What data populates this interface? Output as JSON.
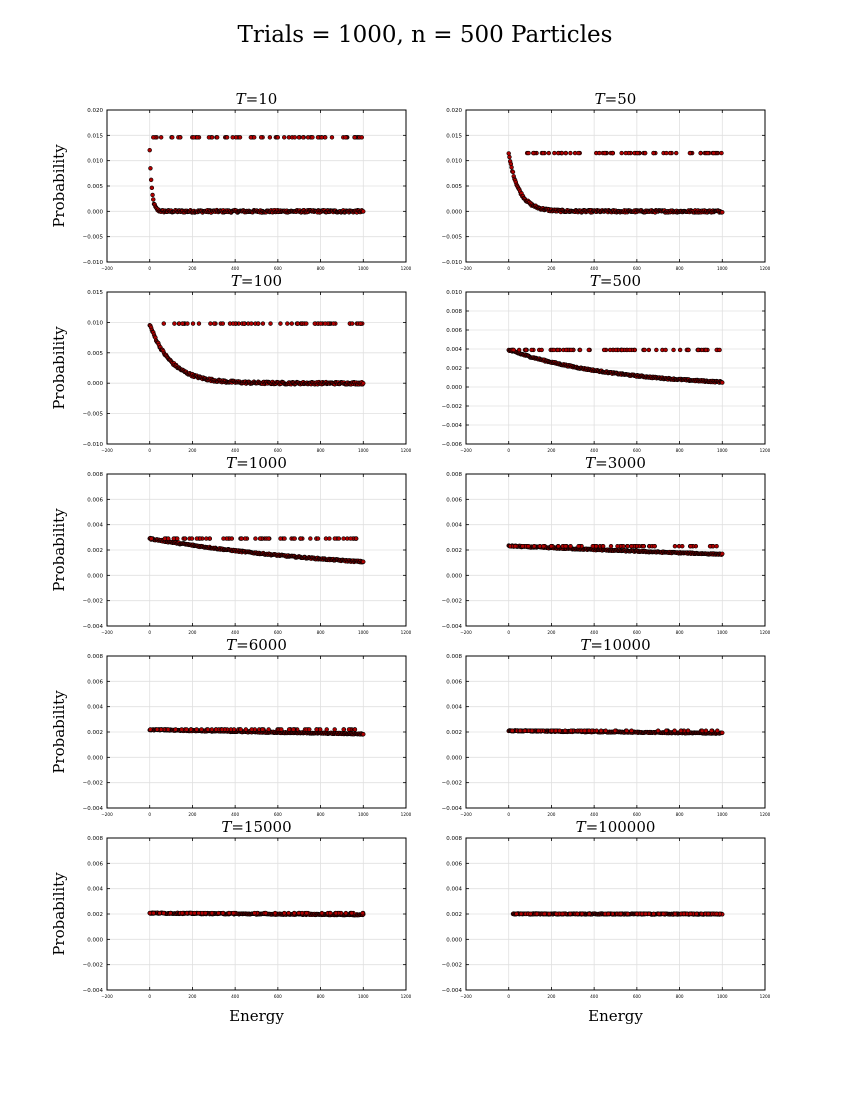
{
  "figure": {
    "title": "Trials$=1000,n=500$ Particles",
    "title_display": "Trials = 1000, n = 500 Particles",
    "ylabel": "Probability",
    "xlabel": "Energy",
    "marker_face_color": "#b00000",
    "marker_edge_color": "#000000",
    "grid_color": "#e0e0e0"
  },
  "chart_data": [
    {
      "type": "scatter",
      "title": "T=10",
      "xlim": [
        -200,
        1200
      ],
      "ylim": [
        -0.01,
        0.02
      ],
      "xticks": [
        "-200",
        "0",
        "200",
        "400",
        "600",
        "800",
        "1000",
        "1200"
      ],
      "yticks": [
        "-0.010",
        "-0.005",
        "0.000",
        "0.005",
        "0.010",
        "0.015",
        "0.020"
      ],
      "grid": true,
      "model": {
        "T": 10,
        "n": 500,
        "upper_level": 0.0146,
        "upper_from": 0,
        "curve_from": 0,
        "start_y": 0.012
      }
    },
    {
      "type": "scatter",
      "title": "T=50",
      "xlim": [
        -200,
        1200
      ],
      "ylim": [
        -0.01,
        0.02
      ],
      "xticks": [
        "-200",
        "0",
        "200",
        "400",
        "600",
        "800",
        "1000",
        "1200"
      ],
      "yticks": [
        "-0.010",
        "-0.005",
        "0.000",
        "0.005",
        "0.010",
        "0.015",
        "0.020"
      ],
      "grid": true,
      "model": {
        "T": 50,
        "n": 500,
        "upper_level": 0.0115,
        "upper_from": 50,
        "curve_from": 0,
        "start_y": 0.0113
      }
    },
    {
      "type": "scatter",
      "title": "T=100",
      "xlim": [
        -200,
        1200
      ],
      "ylim": [
        -0.01,
        0.015
      ],
      "xticks": [
        "-200",
        "0",
        "200",
        "400",
        "600",
        "800",
        "1000",
        "1200"
      ],
      "yticks": [
        "-0.010",
        "-0.005",
        "0.000",
        "0.005",
        "0.010",
        "0.015"
      ],
      "grid": true,
      "model": {
        "T": 100,
        "n": 500,
        "upper_level": 0.0098,
        "upper_from": 50,
        "curve_from": 0,
        "start_y": 0.0097
      }
    },
    {
      "type": "scatter",
      "title": "T=500",
      "xlim": [
        -200,
        1200
      ],
      "ylim": [
        -0.006,
        0.01
      ],
      "xticks": [
        "-200",
        "0",
        "200",
        "400",
        "600",
        "800",
        "1000",
        "1200"
      ],
      "yticks": [
        "-0.006",
        "-0.004",
        "-0.002",
        "0.000",
        "0.002",
        "0.004",
        "0.006",
        "0.008",
        "0.010"
      ],
      "grid": true,
      "model": {
        "T": 500,
        "n": 500,
        "upper_level": 0.0039,
        "upper_from": 0,
        "curve_from": 0,
        "start_y": 0.0039
      }
    },
    {
      "type": "scatter",
      "title": "T=1000",
      "xlim": [
        -200,
        1200
      ],
      "ylim": [
        -0.004,
        0.008
      ],
      "xticks": [
        "-200",
        "0",
        "200",
        "400",
        "600",
        "800",
        "1000",
        "1200"
      ],
      "yticks": [
        "-0.004",
        "-0.002",
        "0.000",
        "0.002",
        "0.004",
        "0.006",
        "0.008"
      ],
      "grid": true,
      "model": {
        "T": 1000,
        "n": 500,
        "upper_level": 0.0029,
        "upper_from": 0,
        "curve_from": 0,
        "start_y": 0.0029
      }
    },
    {
      "type": "scatter",
      "title": "T=3000",
      "xlim": [
        -200,
        1200
      ],
      "ylim": [
        -0.004,
        0.008
      ],
      "xticks": [
        "-200",
        "0",
        "200",
        "400",
        "600",
        "800",
        "1000",
        "1200"
      ],
      "yticks": [
        "-0.004",
        "-0.002",
        "0.000",
        "0.002",
        "0.004",
        "0.006",
        "0.008"
      ],
      "grid": true,
      "model": {
        "T": 3000,
        "n": 500,
        "upper_level": 0.0023,
        "upper_from": 0,
        "curve_from": 0,
        "start_y": 0.00232
      }
    },
    {
      "type": "scatter",
      "title": "T=6000",
      "xlim": [
        -200,
        1200
      ],
      "ylim": [
        -0.004,
        0.008
      ],
      "xticks": [
        "-200",
        "0",
        "200",
        "400",
        "600",
        "800",
        "1000",
        "1200"
      ],
      "yticks": [
        "-0.004",
        "-0.002",
        "0.000",
        "0.002",
        "0.004",
        "0.006",
        "0.008"
      ],
      "grid": true,
      "model": {
        "T": 6000,
        "n": 500,
        "upper_level": 0.0022,
        "upper_from": 0,
        "curve_from": 0,
        "start_y": 0.00218
      }
    },
    {
      "type": "scatter",
      "title": "T=10000",
      "xlim": [
        -200,
        1200
      ],
      "ylim": [
        -0.004,
        0.008
      ],
      "xticks": [
        "-200",
        "0",
        "200",
        "400",
        "600",
        "800",
        "1000",
        "1200"
      ],
      "yticks": [
        "-0.004",
        "-0.002",
        "0.000",
        "0.002",
        "0.004",
        "0.006",
        "0.008"
      ],
      "grid": true,
      "model": {
        "T": 10000,
        "n": 500,
        "upper_level": 0.0021,
        "upper_from": 0,
        "curve_from": 0,
        "start_y": 0.0021
      }
    },
    {
      "type": "scatter",
      "title": "T=15000",
      "xlim": [
        -200,
        1200
      ],
      "ylim": [
        -0.004,
        0.008
      ],
      "xticks": [
        "-200",
        "0",
        "200",
        "400",
        "600",
        "800",
        "1000",
        "1200"
      ],
      "yticks": [
        "-0.004",
        "-0.002",
        "0.000",
        "0.002",
        "0.004",
        "0.006",
        "0.008"
      ],
      "grid": true,
      "model": {
        "T": 15000,
        "n": 500,
        "upper_level": 0.00207,
        "upper_from": 0,
        "curve_from": 0,
        "start_y": 0.00207
      }
    },
    {
      "type": "scatter",
      "title": "T=100000",
      "xlim": [
        -200,
        1200
      ],
      "ylim": [
        -0.004,
        0.008
      ],
      "xticks": [
        "-200",
        "0",
        "200",
        "400",
        "600",
        "800",
        "1000",
        "1200"
      ],
      "yticks": [
        "-0.004",
        "-0.002",
        "0.000",
        "0.002",
        "0.004",
        "0.006",
        "0.008"
      ],
      "grid": true,
      "model": {
        "T": 100000,
        "n": 500,
        "upper_level": 0.00201,
        "upper_from": 30,
        "curve_from": 20,
        "start_y": 0.00201
      }
    }
  ]
}
